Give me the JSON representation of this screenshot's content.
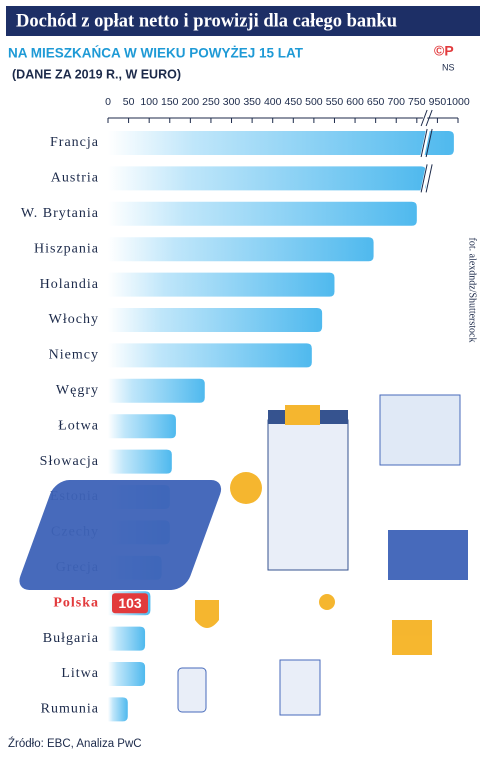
{
  "chart_data": {
    "type": "barh",
    "title": "Dochód z opłat netto i prowizji dla całego banku",
    "subtitle": "NA MIESZKAŃCA W WIEKU POWYŻEJ 15 LAT",
    "note": "(DANE ZA 2019 R., W EURO)",
    "logo": "©P",
    "logo_sub": "NS",
    "photo_credit": "fot. alexdndz/Shutterstock",
    "source": "Źródło: EBC, Analiza PwC",
    "categories": [
      "Francja",
      "Austria",
      "W. Brytania",
      "Hiszpania",
      "Holandia",
      "Włochy",
      "Niemcy",
      "Węgry",
      "Łotwa",
      "Słowacja",
      "Estonia",
      "Czechy",
      "Grecja",
      "Polska",
      "Bułgaria",
      "Litwa",
      "Rumunia"
    ],
    "values": [
      990,
      840,
      750,
      645,
      550,
      520,
      495,
      235,
      165,
      155,
      150,
      150,
      130,
      103,
      90,
      90,
      48
    ],
    "color": "#5cc0f0",
    "highlight": {
      "index": 13,
      "color": "#e23a3c"
    },
    "xlim": [
      0,
      1000
    ],
    "xticks": [
      0,
      50,
      100,
      150,
      200,
      250,
      300,
      350,
      400,
      450,
      500,
      550,
      600,
      650,
      700,
      750,
      950,
      1000
    ],
    "axis_break": true
  }
}
